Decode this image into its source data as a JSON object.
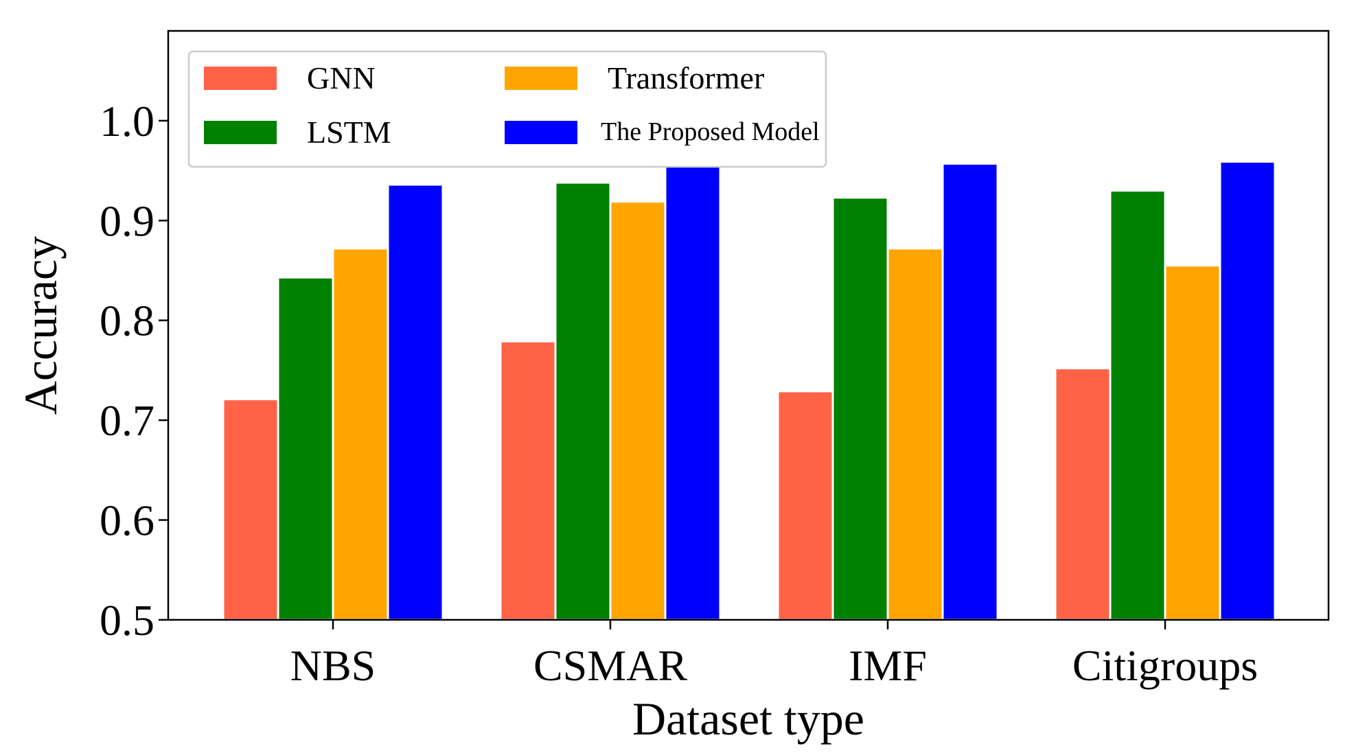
{
  "chart_data": {
    "type": "bar",
    "title": "",
    "xlabel": "Dataset type",
    "ylabel": "Accuracy",
    "ylim": [
      0.5,
      1.09
    ],
    "yticks": [
      "0.5",
      "0.6",
      "0.7",
      "0.8",
      "0.9",
      "1.0"
    ],
    "categories": [
      "NBS",
      "CSMAR",
      "IMF",
      "Citigroups"
    ],
    "series": [
      {
        "name": "GNN",
        "color": "#ff6347",
        "values": [
          0.721,
          0.779,
          0.729,
          0.752
        ]
      },
      {
        "name": "LSTM",
        "color": "#008000",
        "values": [
          0.843,
          0.938,
          0.923,
          0.93
        ]
      },
      {
        "name": "Transformer",
        "color": "#ffa500",
        "values": [
          0.872,
          0.919,
          0.872,
          0.855
        ]
      },
      {
        "name": "The Proposed Model",
        "color": "#0000ff",
        "values": [
          0.936,
          0.962,
          0.957,
          0.959
        ]
      }
    ],
    "legend": {
      "position": "top-left",
      "columns": 2
    },
    "grid": false
  }
}
